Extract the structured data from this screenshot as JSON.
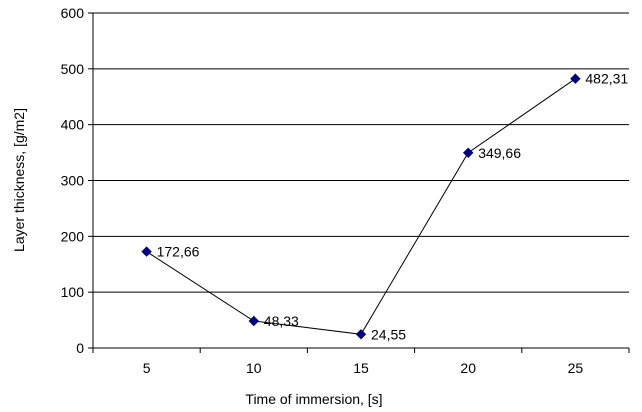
{
  "chart_data": {
    "type": "line",
    "title": "",
    "xlabel": "Time of immersion, [s]",
    "ylabel": "Layer thickness, [g/m2]",
    "x": [
      5,
      10,
      15,
      20,
      25
    ],
    "x_tick_labels": [
      "5",
      "10",
      "15",
      "20",
      "25"
    ],
    "y_tick_labels": [
      "0",
      "100",
      "200",
      "300",
      "400",
      "500",
      "600"
    ],
    "ylim": [
      0,
      600
    ],
    "y_ticks": [
      0,
      100,
      200,
      300,
      400,
      500,
      600
    ],
    "grid": true,
    "legend": "none",
    "series": [
      {
        "values": [
          172.66,
          48.33,
          24.55,
          349.66,
          482.31
        ],
        "data_labels": [
          "172,66",
          "48,33",
          "24,55",
          "349,66",
          "482,31"
        ],
        "color": "#000080",
        "marker": "diamond"
      }
    ]
  }
}
